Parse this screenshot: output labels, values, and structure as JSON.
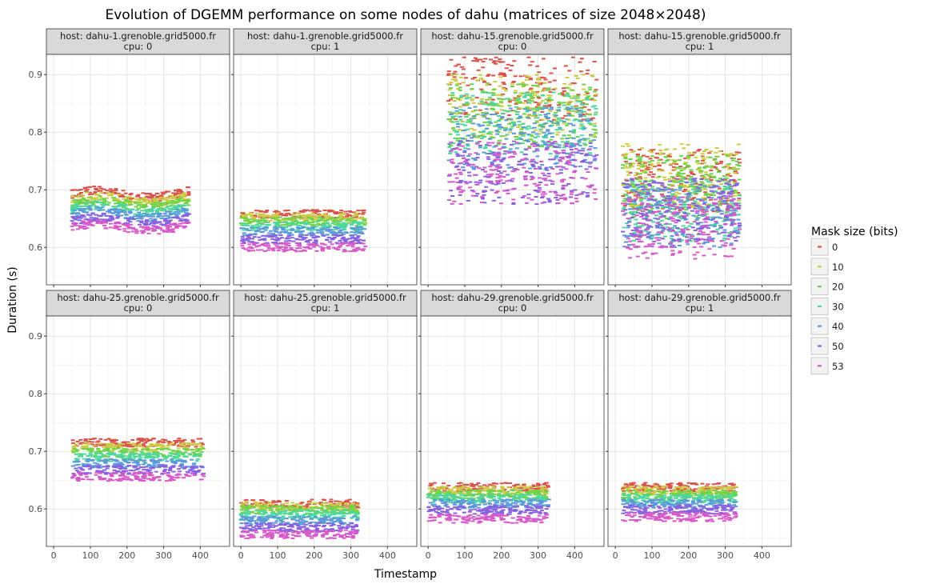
{
  "chart_data": {
    "type": "scatter",
    "title": "Evolution of DGEMM performance on some nodes of dahu (matrices of size 2048×2048)",
    "xlabel": "Timestamp",
    "ylabel": "Duration (s)",
    "xlim": [
      -20,
      480
    ],
    "ylim": [
      0.535,
      0.935
    ],
    "x_ticks": [
      0,
      100,
      200,
      300,
      400
    ],
    "x_tick_labels": [
      "0",
      "100",
      "200",
      "300",
      "400"
    ],
    "y_ticks": [
      0.6,
      0.7,
      0.8,
      0.9
    ],
    "y_tick_labels": [
      "0.6",
      "0.7",
      "0.8",
      "0.9"
    ],
    "grid": true,
    "legend": {
      "title": "Mask size (bits)",
      "position": "right",
      "entries": [
        {
          "label": "0",
          "color": "#d9534a"
        },
        {
          "label": "10",
          "color": "#cdcb46"
        },
        {
          "label": "20",
          "color": "#6fd34a"
        },
        {
          "label": "30",
          "color": "#4ed6a0"
        },
        {
          "label": "40",
          "color": "#5b9ad9"
        },
        {
          "label": "50",
          "color": "#8860e0"
        },
        {
          "label": "53",
          "color": "#d65ac8"
        }
      ]
    },
    "panels": [
      {
        "host": "host: dahu-1.grenoble.grid5000.fr",
        "cpu": "cpu: 0",
        "x_range": [
          50,
          370
        ],
        "series": [
          {
            "mask": "0",
            "y": 0.693
          },
          {
            "mask": "10",
            "y": 0.684
          },
          {
            "mask": "20",
            "y": 0.676
          },
          {
            "mask": "30",
            "y": 0.667
          },
          {
            "mask": "40",
            "y": 0.658
          },
          {
            "mask": "50",
            "y": 0.646
          },
          {
            "mask": "53",
            "y": 0.635
          }
        ]
      },
      {
        "host": "host: dahu-1.grenoble.grid5000.fr",
        "cpu": "cpu: 1",
        "x_range": [
          0,
          340
        ],
        "series": [
          {
            "mask": "0",
            "y": 0.658
          },
          {
            "mask": "10",
            "y": 0.652
          },
          {
            "mask": "20",
            "y": 0.645
          },
          {
            "mask": "30",
            "y": 0.637
          },
          {
            "mask": "40",
            "y": 0.628
          },
          {
            "mask": "50",
            "y": 0.614
          },
          {
            "mask": "53",
            "y": 0.6
          }
        ]
      },
      {
        "host": "host: dahu-15.grenoble.grid5000.fr",
        "cpu": "cpu: 0",
        "x_range": [
          55,
          460
        ],
        "series": [
          {
            "mask": "0",
            "y": 0.875
          },
          {
            "mask": "10",
            "y": 0.845
          },
          {
            "mask": "20",
            "y": 0.83
          },
          {
            "mask": "30",
            "y": 0.815
          },
          {
            "mask": "40",
            "y": 0.79
          },
          {
            "mask": "50",
            "y": 0.73
          },
          {
            "mask": "53",
            "y": 0.73
          }
        ]
      },
      {
        "host": "host: dahu-15.grenoble.grid5000.fr",
        "cpu": "cpu: 1",
        "x_range": [
          20,
          340
        ],
        "series": [
          {
            "mask": "0",
            "y": 0.715
          },
          {
            "mask": "10",
            "y": 0.725
          },
          {
            "mask": "20",
            "y": 0.705
          },
          {
            "mask": "30",
            "y": 0.665
          },
          {
            "mask": "40",
            "y": 0.655
          },
          {
            "mask": "50",
            "y": 0.665
          },
          {
            "mask": "53",
            "y": 0.635
          }
        ]
      },
      {
        "host": "host: dahu-25.grenoble.grid5000.fr",
        "cpu": "cpu: 0",
        "x_range": [
          50,
          410
        ],
        "series": [
          {
            "mask": "0",
            "y": 0.715
          },
          {
            "mask": "10",
            "y": 0.707
          },
          {
            "mask": "20",
            "y": 0.698
          },
          {
            "mask": "30",
            "y": 0.69
          },
          {
            "mask": "40",
            "y": 0.679
          },
          {
            "mask": "50",
            "y": 0.668
          },
          {
            "mask": "53",
            "y": 0.656
          }
        ]
      },
      {
        "host": "host: dahu-25.grenoble.grid5000.fr",
        "cpu": "cpu: 1",
        "x_range": [
          0,
          320
        ],
        "series": [
          {
            "mask": "0",
            "y": 0.609
          },
          {
            "mask": "10",
            "y": 0.604
          },
          {
            "mask": "20",
            "y": 0.598
          },
          {
            "mask": "30",
            "y": 0.59
          },
          {
            "mask": "40",
            "y": 0.58
          },
          {
            "mask": "50",
            "y": 0.568
          },
          {
            "mask": "53",
            "y": 0.556
          }
        ]
      },
      {
        "host": "host: dahu-29.grenoble.grid5000.fr",
        "cpu": "cpu: 0",
        "x_range": [
          0,
          330
        ],
        "series": [
          {
            "mask": "0",
            "y": 0.638
          },
          {
            "mask": "10",
            "y": 0.632
          },
          {
            "mask": "20",
            "y": 0.625
          },
          {
            "mask": "30",
            "y": 0.618
          },
          {
            "mask": "40",
            "y": 0.609
          },
          {
            "mask": "50",
            "y": 0.598
          },
          {
            "mask": "53",
            "y": 0.583
          }
        ]
      },
      {
        "host": "host: dahu-29.grenoble.grid5000.fr",
        "cpu": "cpu: 1",
        "x_range": [
          20,
          330
        ],
        "series": [
          {
            "mask": "0",
            "y": 0.638
          },
          {
            "mask": "10",
            "y": 0.632
          },
          {
            "mask": "20",
            "y": 0.625
          },
          {
            "mask": "30",
            "y": 0.618
          },
          {
            "mask": "40",
            "y": 0.609
          },
          {
            "mask": "50",
            "y": 0.599
          },
          {
            "mask": "53",
            "y": 0.586
          }
        ]
      }
    ]
  }
}
